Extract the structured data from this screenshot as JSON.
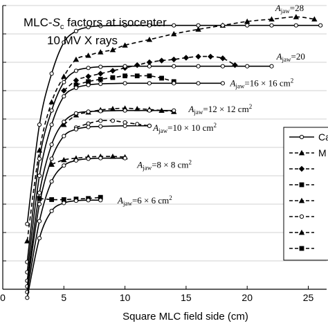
{
  "chart_data": {
    "type": "line",
    "title": "MLC-Sc factors at isocenter",
    "title_parts": {
      "pre": "MLC-",
      "sym": "S",
      "sub": "c",
      "post": " factors at isocenter"
    },
    "subtitle": "10 MV X rays",
    "xlabel": "Square MLC field side (cm)",
    "ylabel": "",
    "xlim": [
      0,
      26.5
    ],
    "ylim": [
      0.5,
      1.0
    ],
    "xticks": [
      0,
      5,
      10,
      15,
      20,
      25
    ],
    "grid": true,
    "legend_position": "right",
    "legend": [
      {
        "text": "Ca",
        "line": "solid",
        "marker": "circle"
      },
      {
        "text": "M",
        "line": "dashed",
        "marker": "triangle"
      },
      {
        "text": "",
        "line": "dashed",
        "marker": "diamond"
      },
      {
        "text": "",
        "line": "dashed",
        "marker": "square"
      },
      {
        "text": "",
        "line": "dashed",
        "marker": "triangle"
      },
      {
        "text": "",
        "line": "dashed",
        "marker": "circle"
      },
      {
        "text": "",
        "line": "dashed",
        "marker": "triangle"
      },
      {
        "text": "",
        "line": "dashed",
        "marker": "square"
      }
    ],
    "series": [
      {
        "name": "Calculated",
        "jaw": "28",
        "calc": [
          [
            2,
            0.615
          ],
          [
            3,
            0.79
          ],
          [
            4,
            0.88
          ],
          [
            5,
            0.935
          ],
          [
            6,
            0.955
          ],
          [
            7,
            0.962
          ],
          [
            8,
            0.964
          ],
          [
            10,
            0.965
          ],
          [
            12,
            0.965
          ],
          [
            14,
            0.965
          ],
          [
            16,
            0.965
          ],
          [
            18,
            0.965
          ],
          [
            20,
            0.965
          ],
          [
            22,
            0.965
          ],
          [
            24,
            0.965
          ],
          [
            26,
            0.965
          ]
        ],
        "meas_marker": "triangle",
        "meas": [
          [
            2,
            0.585
          ],
          [
            3,
            0.745
          ],
          [
            4,
            0.83
          ],
          [
            5,
            0.875
          ],
          [
            6,
            0.905
          ],
          [
            7,
            0.912
          ],
          [
            8,
            0.918
          ],
          [
            9,
            0.922
          ],
          [
            10,
            0.93
          ],
          [
            12,
            0.94
          ],
          [
            14,
            0.95
          ],
          [
            16,
            0.958
          ],
          [
            18,
            0.965
          ],
          [
            20,
            0.972
          ],
          [
            22,
            0.976
          ],
          [
            24,
            0.98
          ],
          [
            25.5,
            0.976
          ]
        ],
        "label": {
          "pre": "A",
          "sub": "jaw",
          "post": "=28",
          "x": 22.3,
          "y": 0.99
        }
      },
      {
        "name": "",
        "jaw": "20",
        "calc": [
          [
            2,
            0.548
          ],
          [
            3,
            0.73
          ],
          [
            4,
            0.815
          ],
          [
            5,
            0.865
          ],
          [
            6,
            0.885
          ],
          [
            7,
            0.89
          ],
          [
            8,
            0.892
          ],
          [
            10,
            0.893
          ],
          [
            12,
            0.893
          ],
          [
            14,
            0.893
          ],
          [
            16,
            0.893
          ],
          [
            18,
            0.893
          ],
          [
            20,
            0.893
          ],
          [
            22,
            0.893
          ]
        ],
        "meas_marker": "diamond",
        "meas": [
          [
            5,
            0.85
          ],
          [
            6,
            0.868
          ],
          [
            7,
            0.875
          ],
          [
            8,
            0.88
          ],
          [
            9,
            0.885
          ],
          [
            10,
            0.89
          ],
          [
            11,
            0.895
          ],
          [
            12,
            0.9
          ],
          [
            13,
            0.903
          ],
          [
            14,
            0.905
          ],
          [
            15,
            0.908
          ],
          [
            16,
            0.91
          ],
          [
            17,
            0.91
          ],
          [
            18,
            0.907
          ],
          [
            19,
            0.895
          ]
        ],
        "label": {
          "pre": "A",
          "sub": "jaw",
          "post": "=20",
          "x": 22.4,
          "y": 0.905
        }
      },
      {
        "name": "",
        "jaw": "16 × 16 cm²",
        "calc": [
          [
            2,
            0.53
          ],
          [
            3,
            0.7
          ],
          [
            4,
            0.79
          ],
          [
            5,
            0.84
          ],
          [
            6,
            0.855
          ],
          [
            7,
            0.86
          ],
          [
            8,
            0.862
          ],
          [
            10,
            0.863
          ],
          [
            12,
            0.863
          ],
          [
            14,
            0.863
          ],
          [
            16,
            0.863
          ],
          [
            18,
            0.863
          ]
        ],
        "meas_marker": "square",
        "meas": [
          [
            6,
            0.86
          ],
          [
            7,
            0.866
          ],
          [
            8,
            0.87
          ],
          [
            9,
            0.873
          ],
          [
            10,
            0.876
          ],
          [
            11,
            0.876
          ],
          [
            12,
            0.876
          ],
          [
            13,
            0.872
          ],
          [
            14,
            0.866
          ]
        ],
        "label": {
          "pre": "A",
          "sub": "jaw",
          "post": "=16 × 16 cm",
          "sup": "2",
          "x": 18.6,
          "y": 0.858
        }
      },
      {
        "name": "",
        "jaw": "12 × 12 cm²",
        "calc": [
          [
            2,
            0.515
          ],
          [
            3,
            0.67
          ],
          [
            4,
            0.755
          ],
          [
            5,
            0.795
          ],
          [
            6,
            0.81
          ],
          [
            7,
            0.813
          ],
          [
            8,
            0.814
          ],
          [
            10,
            0.815
          ],
          [
            12,
            0.815
          ],
          [
            14,
            0.815
          ]
        ],
        "meas_marker": "triangle",
        "meas": [
          [
            5,
            0.79
          ],
          [
            6,
            0.807
          ],
          [
            7,
            0.812
          ],
          [
            8,
            0.816
          ],
          [
            9,
            0.818
          ],
          [
            10,
            0.819
          ],
          [
            11,
            0.818
          ],
          [
            12,
            0.817
          ],
          [
            13,
            0.815
          ],
          [
            14,
            0.813
          ]
        ],
        "label": {
          "pre": "A",
          "sub": "jaw",
          "post": "=12 × 12 cm",
          "sup": "2",
          "x": 15.2,
          "y": 0.812
        }
      },
      {
        "name": "",
        "jaw": "10 × 10 cm²",
        "calc": [
          [
            2,
            0.505
          ],
          [
            3,
            0.65
          ],
          [
            4,
            0.73
          ],
          [
            5,
            0.77
          ],
          [
            6,
            0.782
          ],
          [
            7,
            0.786
          ],
          [
            8,
            0.787
          ],
          [
            10,
            0.788
          ],
          [
            12,
            0.788
          ]
        ],
        "meas_marker": "circle",
        "meas": [
          [
            6,
            0.785
          ],
          [
            7,
            0.792
          ],
          [
            8,
            0.797
          ],
          [
            9,
            0.797
          ],
          [
            10,
            0.794
          ],
          [
            11,
            0.791
          ],
          [
            12,
            0.788
          ]
        ],
        "label": {
          "pre": "A",
          "sub": "jaw",
          "post": "=10 × 10 cm",
          "sup": "2",
          "x": 12.3,
          "y": 0.779
        }
      },
      {
        "name": "",
        "jaw": "8 × 8 cm²",
        "calc": [
          [
            2,
            0.495
          ],
          [
            3,
            0.62
          ],
          [
            4,
            0.69
          ],
          [
            5,
            0.718
          ],
          [
            6,
            0.727
          ],
          [
            7,
            0.73
          ],
          [
            8,
            0.731
          ],
          [
            10,
            0.731
          ]
        ],
        "meas_marker": "triangle",
        "meas": [
          [
            4,
            0.72
          ],
          [
            5,
            0.728
          ],
          [
            6,
            0.731
          ],
          [
            7,
            0.733
          ],
          [
            8,
            0.734
          ],
          [
            9,
            0.734
          ],
          [
            10,
            0.733
          ]
        ],
        "label": {
          "pre": "A",
          "sub": "jaw",
          "post": "=8 × 8 cm",
          "sup": "2",
          "x": 11.0,
          "y": 0.714
        }
      },
      {
        "name": "",
        "jaw": "6 × 6 cm²",
        "calc": [
          [
            2,
            0.485
          ],
          [
            3,
            0.59
          ],
          [
            4,
            0.638
          ],
          [
            5,
            0.652
          ],
          [
            6,
            0.656
          ],
          [
            7,
            0.657
          ],
          [
            8,
            0.657
          ]
        ],
        "meas_marker": "square",
        "meas": [
          [
            3,
            0.66
          ],
          [
            4,
            0.658
          ],
          [
            5,
            0.658
          ],
          [
            6,
            0.659
          ],
          [
            7,
            0.66
          ],
          [
            8,
            0.662
          ]
        ],
        "label": {
          "pre": "A",
          "sub": "jaw",
          "post": "=6 × 6 cm",
          "sup": "2",
          "x": 9.4,
          "y": 0.651
        }
      }
    ]
  }
}
